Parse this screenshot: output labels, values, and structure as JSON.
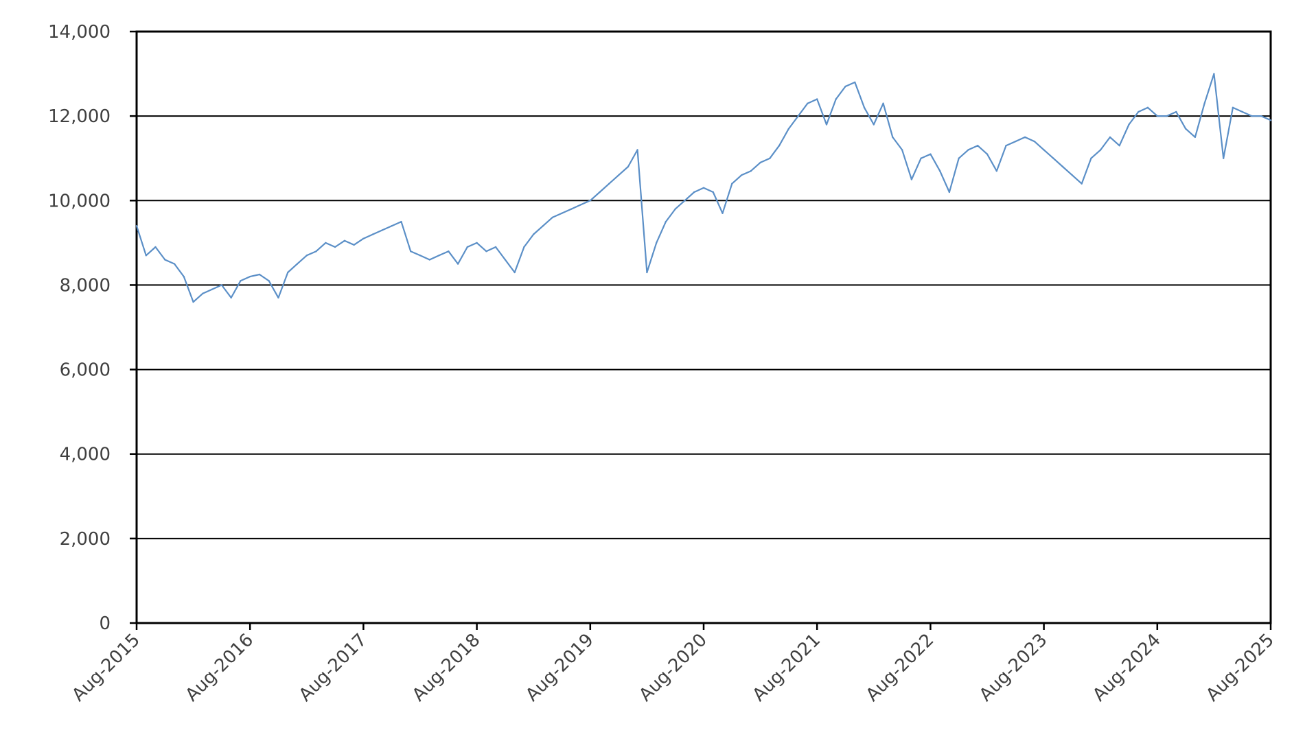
{
  "chart_data": {
    "type": "line",
    "title": "",
    "xlabel": "",
    "ylabel": "",
    "ylim": [
      0,
      14000
    ],
    "xlim": [
      "2015-08",
      "2025-08"
    ],
    "grid": true,
    "legend": "none",
    "y_ticks": [
      {
        "value": 0,
        "label": "0"
      },
      {
        "value": 2000,
        "label": "2,000"
      },
      {
        "value": 4000,
        "label": "4,000"
      },
      {
        "value": 6000,
        "label": "6,000"
      },
      {
        "value": 8000,
        "label": "8,000"
      },
      {
        "value": 10000,
        "label": "10,000"
      },
      {
        "value": 12000,
        "label": "12,000"
      },
      {
        "value": 14000,
        "label": "14,000"
      }
    ],
    "x_ticks": [
      {
        "value": "2015-08",
        "label": "Aug-2015"
      },
      {
        "value": "2016-08",
        "label": "Aug-2016"
      },
      {
        "value": "2017-08",
        "label": "Aug-2017"
      },
      {
        "value": "2018-08",
        "label": "Aug-2018"
      },
      {
        "value": "2019-08",
        "label": "Aug-2019"
      },
      {
        "value": "2020-08",
        "label": "Aug-2020"
      },
      {
        "value": "2021-08",
        "label": "Aug-2021"
      },
      {
        "value": "2022-08",
        "label": "Aug-2022"
      },
      {
        "value": "2023-08",
        "label": "Aug-2023"
      },
      {
        "value": "2024-08",
        "label": "Aug-2024"
      },
      {
        "value": "2025-08",
        "label": "Aug-2025"
      }
    ],
    "series": [
      {
        "color": "#5B8FC7",
        "x": [
          "2015-08",
          "2015-09",
          "2015-10",
          "2015-11",
          "2015-12",
          "2016-01",
          "2016-02",
          "2016-03",
          "2016-04",
          "2016-05",
          "2016-06",
          "2016-07",
          "2016-08",
          "2016-09",
          "2016-10",
          "2016-11",
          "2016-12",
          "2017-01",
          "2017-02",
          "2017-03",
          "2017-04",
          "2017-05",
          "2017-06",
          "2017-07",
          "2017-08",
          "2017-09",
          "2017-10",
          "2017-11",
          "2017-12",
          "2018-01",
          "2018-02",
          "2018-03",
          "2018-04",
          "2018-05",
          "2018-06",
          "2018-07",
          "2018-08",
          "2018-09",
          "2018-10",
          "2018-11",
          "2018-12",
          "2019-01",
          "2019-02",
          "2019-03",
          "2019-04",
          "2019-05",
          "2019-06",
          "2019-07",
          "2019-08",
          "2019-09",
          "2019-10",
          "2019-11",
          "2019-12",
          "2020-01",
          "2020-02",
          "2020-03",
          "2020-04",
          "2020-05",
          "2020-06",
          "2020-07",
          "2020-08",
          "2020-09",
          "2020-10",
          "2020-11",
          "2020-12",
          "2021-01",
          "2021-02",
          "2021-03",
          "2021-04",
          "2021-05",
          "2021-06",
          "2021-07",
          "2021-08",
          "2021-09",
          "2021-10",
          "2021-11",
          "2021-12",
          "2022-01",
          "2022-02",
          "2022-03",
          "2022-04",
          "2022-05",
          "2022-06",
          "2022-07",
          "2022-08",
          "2022-09",
          "2022-10",
          "2022-11",
          "2022-12",
          "2023-01",
          "2023-02",
          "2023-03",
          "2023-04",
          "2023-05",
          "2023-06",
          "2023-07",
          "2023-08",
          "2023-09",
          "2023-10",
          "2023-11",
          "2023-12",
          "2024-01",
          "2024-02",
          "2024-03",
          "2024-04",
          "2024-05",
          "2024-06",
          "2024-07",
          "2024-08",
          "2024-09",
          "2024-10",
          "2024-11",
          "2024-12",
          "2025-01",
          "2025-02",
          "2025-03",
          "2025-04",
          "2025-05",
          "2025-06",
          "2025-07",
          "2025-08"
        ],
        "values": [
          9400,
          8700,
          8900,
          8600,
          8500,
          8200,
          7600,
          7800,
          7900,
          8000,
          7700,
          8100,
          8200,
          8250,
          8100,
          7700,
          8300,
          8500,
          8700,
          8800,
          9000,
          8900,
          9050,
          8950,
          9100,
          9200,
          9300,
          9400,
          9500,
          8800,
          8700,
          8600,
          8700,
          8800,
          8500,
          8900,
          9000,
          8800,
          8900,
          8600,
          8300,
          8900,
          9200,
          9400,
          9600,
          9700,
          9800,
          9900,
          10000,
          10200,
          10400,
          10600,
          10800,
          11200,
          8300,
          9000,
          9500,
          9800,
          10000,
          10200,
          10300,
          10200,
          9700,
          10400,
          10600,
          10700,
          10900,
          11000,
          11300,
          11700,
          12000,
          12300,
          12400,
          11800,
          12400,
          12700,
          12800,
          12200,
          11800,
          12300,
          11500,
          11200,
          10500,
          11000,
          11100,
          10700,
          10200,
          11000,
          11200,
          11300,
          11100,
          10700,
          11300,
          11400,
          11500,
          11400,
          11200,
          11000,
          10800,
          10600,
          10400,
          11000,
          11200,
          11500,
          11300,
          11800,
          12100,
          12200,
          12000,
          12000,
          12100,
          11700,
          11500,
          12300,
          13000,
          11000,
          12200,
          12100,
          12000,
          12000,
          11900
        ]
      }
    ]
  }
}
